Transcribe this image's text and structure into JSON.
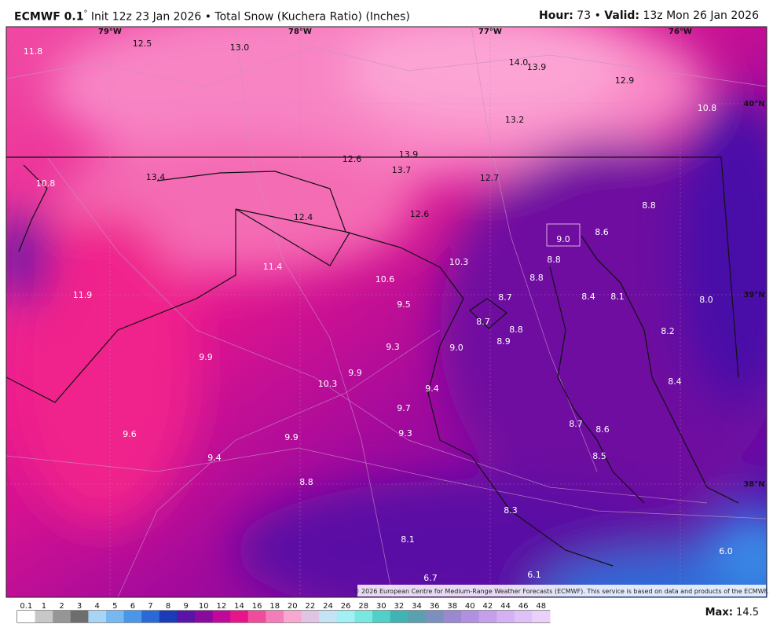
{
  "header": {
    "model": "ECMWF 0.1",
    "degree": "°",
    "description": " Init 12z 23 Jan 2026 • Total Snow (Kuchera Ratio) (Inches)",
    "hour_label": "Hour:",
    "hour_value": " 73 • ",
    "valid_label": "Valid:",
    "valid_value": " 13z Mon 26 Jan 2026"
  },
  "geo_labels": [
    "79°W",
    "78°W",
    "77°W",
    "76°W",
    "40°N",
    "39°N",
    "38°N"
  ],
  "point_values": [
    "11.8",
    "12.5",
    "13.0",
    "14.0",
    "13.9",
    "12.9",
    "10.8",
    "13.2",
    "13.9",
    "12.6",
    "13.7",
    "12.7",
    "13.4",
    "10.8",
    "12.4",
    "12.6",
    "8.8",
    "9.0",
    "8.6",
    "8.8",
    "10.3",
    "11.4",
    "10.6",
    "8.8",
    "11.9",
    "8.7",
    "8.4",
    "8.1",
    "8.0",
    "9.5",
    "8.7",
    "8.8",
    "8.2",
    "8.9",
    "9.3",
    "9.0",
    "9.9",
    "9.9",
    "10.3",
    "8.4",
    "9.4",
    "9.7",
    "8.7",
    "8.6",
    "9.6",
    "9.9",
    "9.3",
    "9.4",
    "8.5",
    "8.8",
    "8.3",
    "8.1",
    "6.0",
    "6.1",
    "6.7"
  ],
  "copyright": "© 2026 European Centre for Medium-Range Weather Forecasts (ECMWF). This service is based on data and products of the ECMWF.",
  "colorbar": [
    {
      "label": "0.1",
      "color": "#ffffff"
    },
    {
      "label": "1",
      "color": "#c8c8c8"
    },
    {
      "label": "2",
      "color": "#969696"
    },
    {
      "label": "3",
      "color": "#6e6e6e"
    },
    {
      "label": "4",
      "color": "#a8d4f5"
    },
    {
      "label": "5",
      "color": "#78b8f0"
    },
    {
      "label": "6",
      "color": "#4a96e8"
    },
    {
      "label": "7",
      "color": "#2a6ad8"
    },
    {
      "label": "8",
      "color": "#1a3cb8"
    },
    {
      "label": "9",
      "color": "#5a14a8"
    },
    {
      "label": "10",
      "color": "#8a0aa0"
    },
    {
      "label": "12",
      "color": "#c0089a"
    },
    {
      "label": "14",
      "color": "#e8148c"
    },
    {
      "label": "16",
      "color": "#f04c9c"
    },
    {
      "label": "18",
      "color": "#f47cb8"
    },
    {
      "label": "20",
      "color": "#f8a8d0"
    },
    {
      "label": "22",
      "color": "#e0c4e4"
    },
    {
      "label": "24",
      "color": "#c4e4f4"
    },
    {
      "label": "26",
      "color": "#a0f0f4"
    },
    {
      "label": "28",
      "color": "#78e8e0"
    },
    {
      "label": "30",
      "color": "#50d0c8"
    },
    {
      "label": "32",
      "color": "#40b4b4"
    },
    {
      "label": "34",
      "color": "#5aa0b0"
    },
    {
      "label": "36",
      "color": "#7c90c0"
    },
    {
      "label": "38",
      "color": "#9a88d0"
    },
    {
      "label": "40",
      "color": "#b090e0"
    },
    {
      "label": "42",
      "color": "#c4a0ec"
    },
    {
      "label": "44",
      "color": "#d4b0f4"
    },
    {
      "label": "46",
      "color": "#e0c0f8"
    },
    {
      "label": "48",
      "color": "#ecd0fc"
    }
  ],
  "max_label": "Max:",
  "max_value": " 14.5"
}
